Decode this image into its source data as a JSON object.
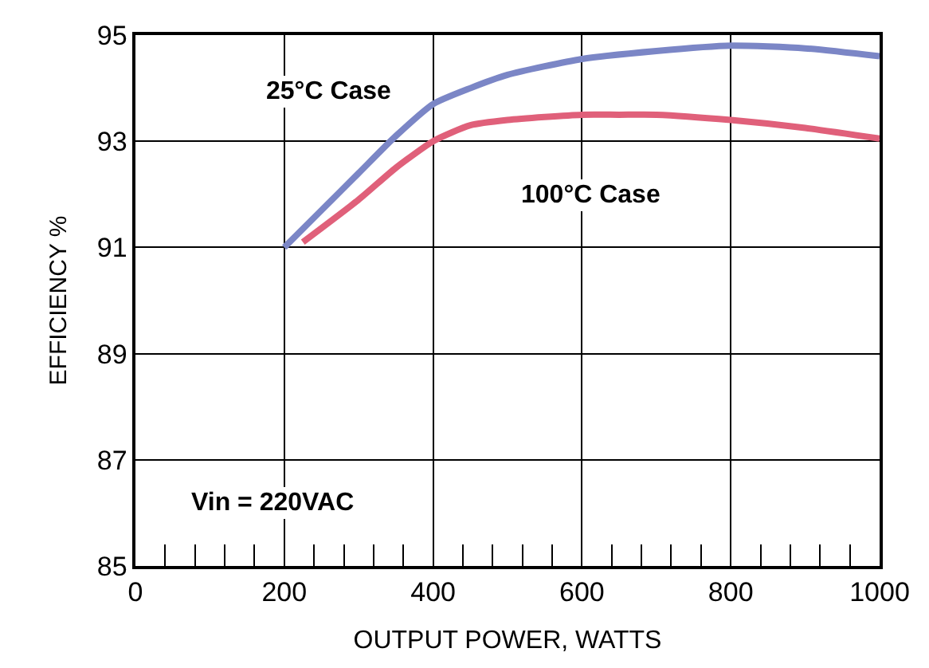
{
  "chart_data": {
    "type": "line",
    "xlabel": "OUTPUT POWER, WATTS",
    "ylabel": "EFFICIENCY %",
    "series": [
      {
        "color": "#7b86c6",
        "x": [
          200,
          250,
          300,
          350,
          400,
          450,
          500,
          600,
          700,
          800,
          900,
          1000
        ],
        "values": [
          91.0,
          91.7,
          92.4,
          93.1,
          93.7,
          94.0,
          94.25,
          94.55,
          94.7,
          94.8,
          94.75,
          94.6
        ]
      },
      {
        "color": "#e0607a",
        "x": [
          225,
          300,
          350,
          400,
          450,
          500,
          600,
          650,
          700,
          800,
          900,
          1000
        ],
        "values": [
          91.1,
          91.9,
          92.5,
          93.0,
          93.3,
          93.4,
          93.5,
          93.5,
          93.5,
          93.4,
          93.25,
          93.05
        ]
      }
    ],
    "annotations": [
      "25°C Case",
      "100°C Case",
      "Vin = 220VAC"
    ],
    "xlim": [
      0,
      1000
    ],
    "xticks": [
      0,
      {
        "value": 40,
        "label": null
      },
      {
        "value": 80,
        "label": null
      },
      {
        "value": 120,
        "label": null
      },
      {
        "value": 160,
        "label": null
      },
      200,
      {
        "value": 240,
        "label": null
      },
      {
        "value": 280,
        "label": null
      },
      {
        "value": 320,
        "label": null
      },
      {
        "value": 360,
        "label": null
      },
      400,
      {
        "value": 440,
        "label": null
      },
      {
        "value": 480,
        "label": null
      },
      {
        "value": 520,
        "label": null
      },
      {
        "value": 560,
        "label": null
      },
      600,
      {
        "value": 640,
        "label": null
      },
      {
        "value": 680,
        "label": null
      },
      {
        "value": 720,
        "label": null
      },
      {
        "value": 760,
        "label": null
      },
      800,
      {
        "value": 840,
        "label": null
      },
      {
        "value": 880,
        "label": null
      },
      {
        "value": 920,
        "label": null
      },
      {
        "value": 960,
        "label": null
      },
      1000
    ],
    "ylim": [
      85,
      95
    ],
    "yticks": [
      85,
      87,
      89,
      91,
      93,
      95
    ],
    "grid": true,
    "marker": "none",
    "line_style": "solid"
  }
}
